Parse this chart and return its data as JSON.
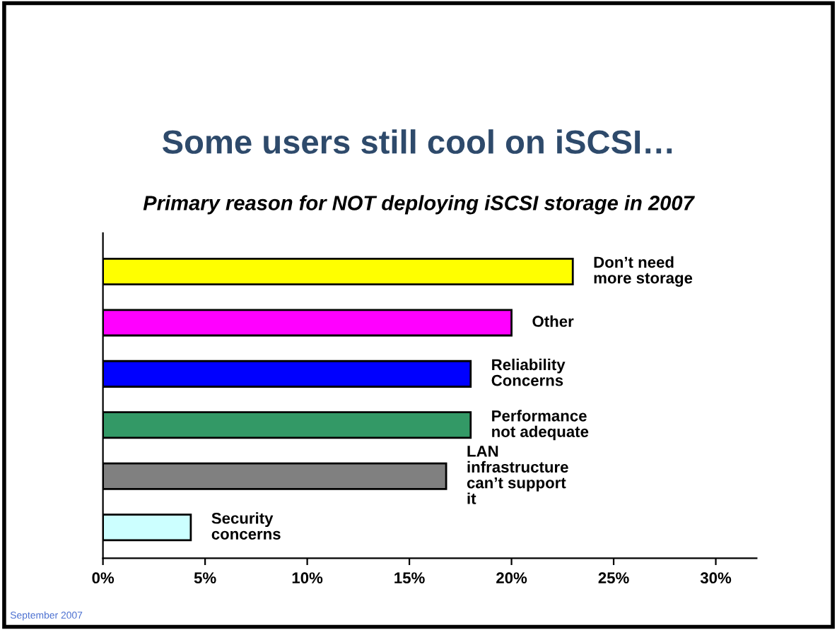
{
  "chart_data": {
    "type": "bar",
    "orientation": "horizontal",
    "title": "Some users still cool on iSCSI…",
    "subtitle": "Primary reason for NOT deploying iSCSI storage in 2007",
    "categories": [
      "Don’t need\nmore storage",
      "Other",
      "Reliability\nConcerns",
      "Performance\nnot adequate",
      "LAN\ninfrastructure\ncan’t support\nit",
      "Security\nconcerns"
    ],
    "values": [
      23,
      20,
      18,
      18,
      16.8,
      4.3
    ],
    "colors": [
      "#ffff00",
      "#ff00ff",
      "#0000ff",
      "#339966",
      "#808080",
      "#ccffff"
    ],
    "xlim": [
      0,
      32
    ],
    "xticks": [
      {
        "value": 0,
        "label": "0%"
      },
      {
        "value": 5,
        "label": "5%"
      },
      {
        "value": 10,
        "label": "10%"
      },
      {
        "value": 15,
        "label": "15%"
      },
      {
        "value": 20,
        "label": "20%"
      },
      {
        "value": 25,
        "label": "25%"
      },
      {
        "value": 30,
        "label": "30%"
      }
    ],
    "grid": false,
    "legend": false,
    "annotations": [
      "September 2007"
    ]
  }
}
